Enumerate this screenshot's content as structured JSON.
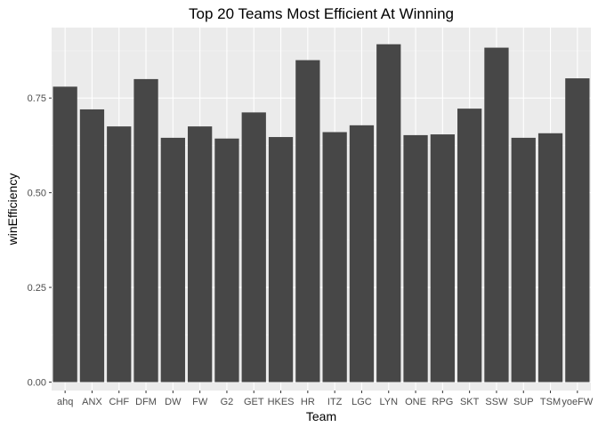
{
  "chart_data": {
    "type": "bar",
    "title": "Top 20 Teams Most Efficient At Winning",
    "xlabel": "Team",
    "ylabel": "winEfficiency",
    "categories": [
      "ahq",
      "ANX",
      "CHF",
      "DFM",
      "DW",
      "FW",
      "G2",
      "GET",
      "HKES",
      "HR",
      "ITZ",
      "LGC",
      "LYN",
      "ONE",
      "RPG",
      "SKT",
      "SSW",
      "SUP",
      "TSM",
      "yoeFW"
    ],
    "values": [
      0.78,
      0.72,
      0.675,
      0.8,
      0.645,
      0.675,
      0.643,
      0.712,
      0.647,
      0.85,
      0.66,
      0.678,
      0.892,
      0.652,
      0.654,
      0.722,
      0.883,
      0.645,
      0.657,
      0.802
    ],
    "ylim": [
      -0.0223,
      0.936
    ],
    "yticks": [
      0,
      0.25,
      0.5,
      0.75
    ],
    "ytick_labels": [
      "0.00",
      "0.25",
      "0.50",
      "0.75"
    ],
    "grid": true,
    "legend": "none",
    "colors": {
      "bar": "#474747",
      "panel": "#ebebeb",
      "grid_major": "#ffffff",
      "grid_minor": "#f5f5f5"
    }
  }
}
